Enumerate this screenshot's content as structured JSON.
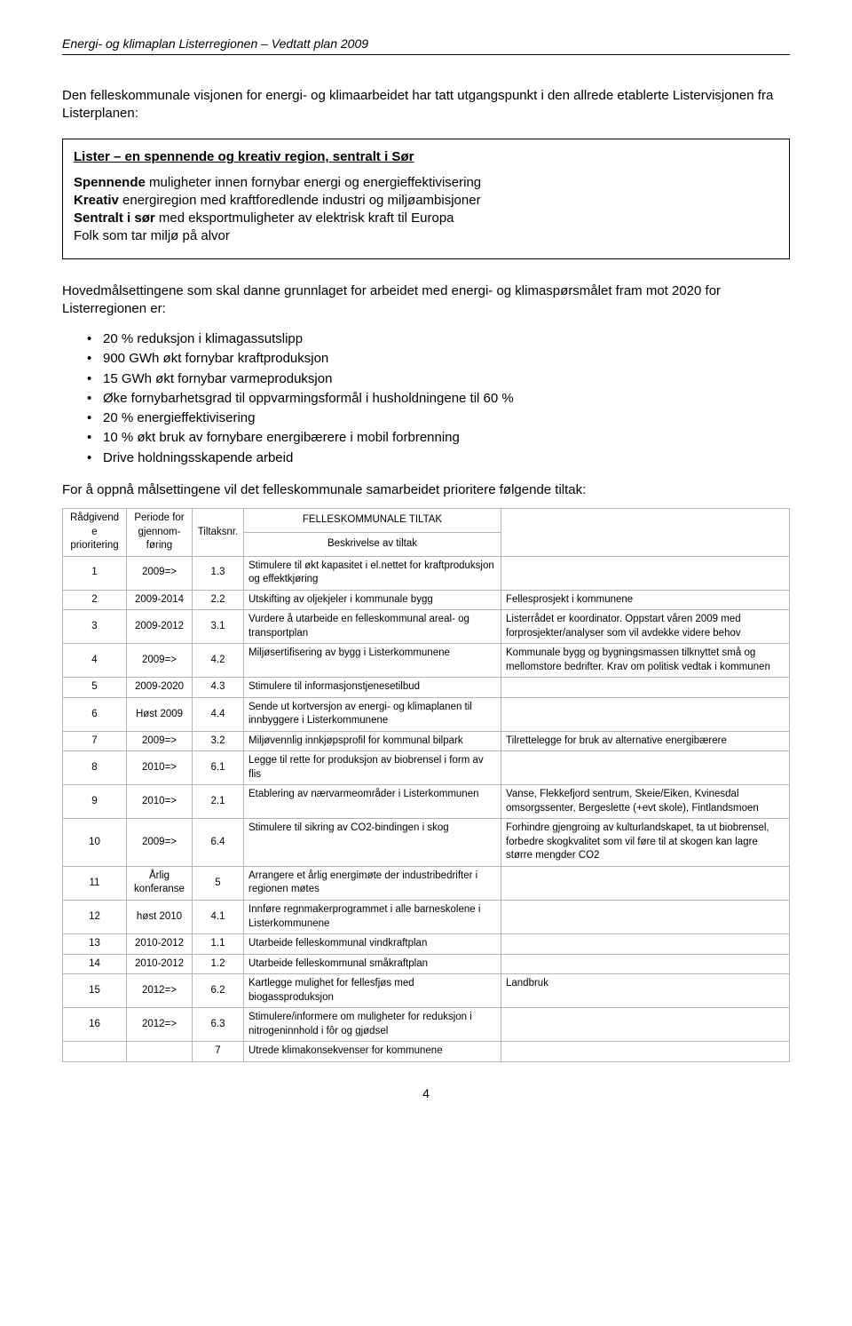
{
  "header": "Energi- og klimaplan Listerregionen – Vedtatt plan 2009",
  "intro": "Den felleskommunale visjonen for energi- og klimaarbeidet har tatt utgangspunkt i den allrede etablerte Listervisjonen fra Listerplanen:",
  "vision": {
    "title": "Lister – en spennende og kreativ region, sentralt i Sør",
    "lines": [
      {
        "lead": "Spennende",
        "rest": " muligheter innen fornybar energi og energieffektivisering"
      },
      {
        "lead": "Kreativ",
        "rest": " energiregion med kraftforedlende industri og miljøambisjoner"
      },
      {
        "lead": "Sentralt i sør",
        "rest": " med eksportmuligheter av elektrisk kraft til Europa"
      },
      {
        "lead": "",
        "rest": "Folk som tar miljø på alvor"
      }
    ]
  },
  "sectionLead": "Hovedmålsettingene som skal danne grunnlaget for arbeidet med energi- og klimaspørsmålet fram mot 2020 for Listerregionen er:",
  "bullets": [
    "20 % reduksjon i klimagassutslipp",
    "900 GWh økt fornybar kraftproduksjon",
    "15 GWh økt fornybar varmeproduksjon",
    "Øke fornybarhetsgrad til oppvarmingsformål i husholdningene til 60 %",
    "20 % energieffektivisering",
    "10 % økt bruk av fornybare energibærere i mobil forbrenning",
    "Drive holdningsskapende arbeid"
  ],
  "closing": "For å oppnå målsettingene vil det felleskommunale samarbeidet prioritere følgende tiltak:",
  "table": {
    "headers": {
      "c1": "Rådgivende prioritering",
      "c2": "Periode for gjennom-føring",
      "c3": "Tiltaksnr.",
      "c4a": "FELLESKOMMUNALE TILTAK",
      "c4b": "Beskrivelse av tiltak",
      "c5": ""
    },
    "rows": [
      {
        "p": "1",
        "period": "2009=>",
        "num": "1.3",
        "desc": "Stimulere til økt kapasitet i el.nettet for kraftproduksjon og effektkjøring",
        "note": ""
      },
      {
        "p": "2",
        "period": "2009-2014",
        "num": "2.2",
        "desc": "Utskifting av oljekjeler i kommunale bygg",
        "note": "Fellesprosjekt i kommunene"
      },
      {
        "p": "3",
        "period": "2009-2012",
        "num": "3.1",
        "desc": "Vurdere å utarbeide en felleskommunal areal- og transportplan",
        "note": "Listerrådet er koordinator. Oppstart våren 2009 med forprosjekter/analyser som vil avdekke videre behov"
      },
      {
        "p": "4",
        "period": "2009=>",
        "num": "4.2",
        "desc": "Miljøsertifisering av bygg i Listerkommunene",
        "note": "Kommunale bygg og bygningsmassen tilknyttet små og mellomstore bedrifter. Krav om politisk vedtak i kommunen"
      },
      {
        "p": "5",
        "period": "2009-2020",
        "num": "4.3",
        "desc": "Stimulere til informasjonstjenesetilbud",
        "note": ""
      },
      {
        "p": "6",
        "period": "Høst 2009",
        "num": "4.4",
        "desc": "Sende ut kortversjon av energi- og klimaplanen til innbyggere i Listerkommunene",
        "note": ""
      },
      {
        "p": "7",
        "period": "2009=>",
        "num": "3.2",
        "desc": "Miljøvennlig innkjøpsprofil for kommunal bilpark",
        "note": "Tilrettelegge for bruk av alternative energibærere"
      },
      {
        "p": "8",
        "period": "2010=>",
        "num": "6.1",
        "desc": "Legge til rette for produksjon av biobrensel i form av flis",
        "note": ""
      },
      {
        "p": "9",
        "period": "2010=>",
        "num": "2.1",
        "desc": "Etablering av nærvarmeområder i Listerkommunen",
        "note": "Vanse, Flekkefjord sentrum, Skeie/Eiken, Kvinesdal omsorgssenter, Bergeslette (+evt skole), Fintlandsmoen"
      },
      {
        "p": "10",
        "period": "2009=>",
        "num": "6.4",
        "desc": "Stimulere til sikring av CO2-bindingen i skog",
        "note": "Forhindre gjengroing av kulturlandskapet, ta ut biobrensel, forbedre skogkvalitet som vil føre til at skogen kan lagre større mengder CO2"
      },
      {
        "p": "11",
        "period": "Årlig konferanse",
        "num": "5",
        "desc": "Arrangere et årlig energimøte der industribedrifter i regionen møtes",
        "note": ""
      },
      {
        "p": "12",
        "period": "høst 2010",
        "num": "4.1",
        "desc": "Innføre regnmakerprogrammet i alle barneskolene i Listerkommunene",
        "note": ""
      },
      {
        "p": "13",
        "period": "2010-2012",
        "num": "1.1",
        "desc": "Utarbeide felleskommunal vindkraftplan",
        "note": ""
      },
      {
        "p": "14",
        "period": "2010-2012",
        "num": "1.2",
        "desc": "Utarbeide felleskommunal småkraftplan",
        "note": ""
      },
      {
        "p": "15",
        "period": "2012=>",
        "num": "6.2",
        "desc": "Kartlegge mulighet for fellesfjøs med biogassproduksjon",
        "note": "Landbruk"
      },
      {
        "p": "16",
        "period": "2012=>",
        "num": "6.3",
        "desc": "Stimulere/informere om muligheter for reduksjon i nitrogeninnhold i fôr og gjødsel",
        "note": ""
      },
      {
        "p": "",
        "period": "",
        "num": "7",
        "desc": "Utrede klimakonsekvenser for kommunene",
        "note": ""
      }
    ]
  },
  "pageNumber": "4"
}
